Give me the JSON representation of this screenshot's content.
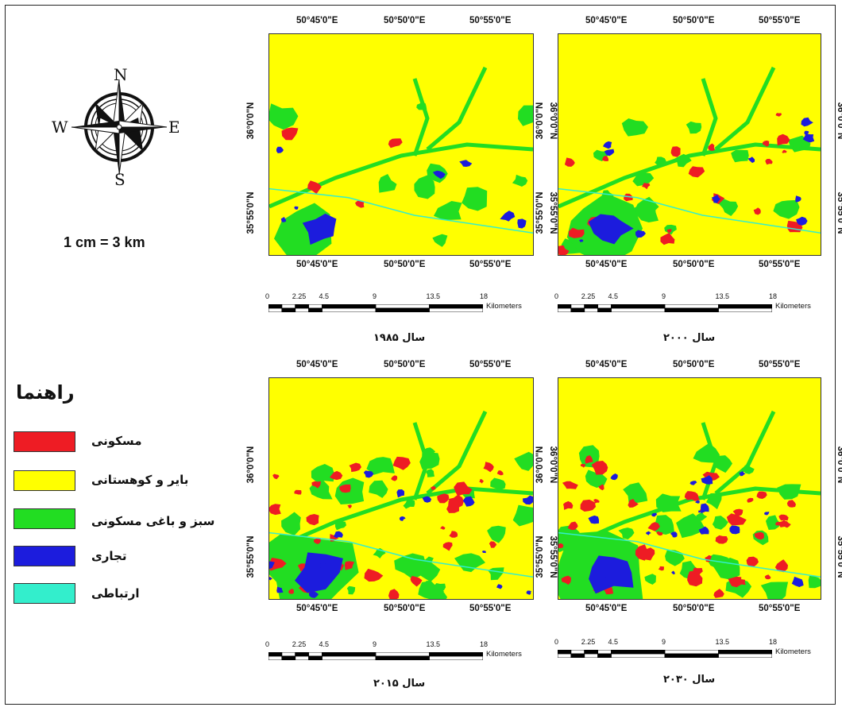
{
  "compass": {
    "n": "N",
    "s": "S",
    "e": "E",
    "w": "W"
  },
  "map_scale": "1 cm = 3 km",
  "legend": {
    "title": "راهنما",
    "items": [
      {
        "label": "مسکونی",
        "color": "#ee1c24"
      },
      {
        "label": "بایر و کوهستانی",
        "color": "#ffff00"
      },
      {
        "label": "سبز و باغی مسکونی",
        "color": "#22dd22"
      },
      {
        "label": "تجاری",
        "color": "#1c1cdd"
      },
      {
        "label": "ارتباطی",
        "color": "#33eecc"
      }
    ]
  },
  "axes": {
    "lon_ticks": [
      "50°45'0\"E",
      "50°50'0\"E",
      "50°55'0\"E"
    ],
    "lat_ticks": [
      "36°0'0\"N",
      "35°55'0\"N"
    ]
  },
  "scalebar": {
    "ticks": [
      "0",
      "2.25",
      "4.5",
      "9",
      "13.5",
      "18"
    ],
    "unit": "Kilometers"
  },
  "maps": [
    {
      "year_label": "سال ۱۹۸۵"
    },
    {
      "year_label": "سال ۲۰۰۰"
    },
    {
      "year_label": "سال ۲۰۱۵"
    },
    {
      "year_label": "سال ۲۰۳۰"
    }
  ]
}
